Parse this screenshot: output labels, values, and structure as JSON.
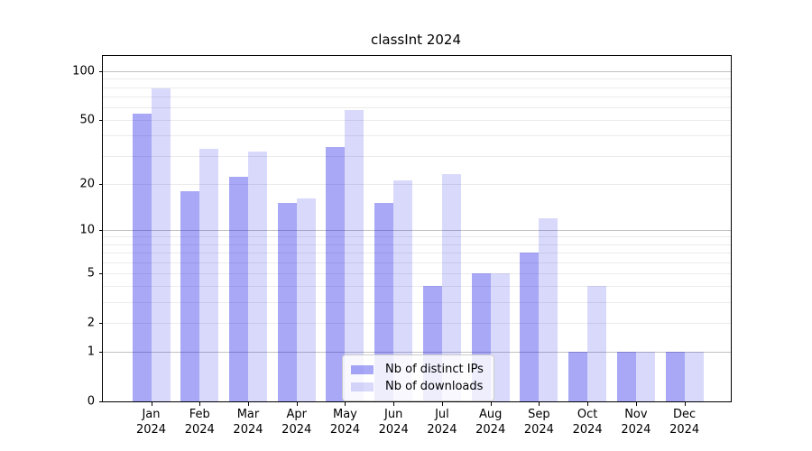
{
  "title": "classInt 2024",
  "legend": {
    "items": [
      {
        "label": "Nb of distinct IPs"
      },
      {
        "label": "Nb of downloads"
      }
    ],
    "position": "lower center"
  },
  "chart_data": {
    "type": "bar",
    "title": "classInt 2024",
    "categories": [
      "Jan",
      "Feb",
      "Mar",
      "Apr",
      "May",
      "Jun",
      "Jul",
      "Aug",
      "Sep",
      "Oct",
      "Nov",
      "Dec"
    ],
    "category_year": "2024",
    "series": [
      {
        "name": "Nb of distinct IPs",
        "color": "rgba(0,0,230,0.34)",
        "values": [
          55,
          18,
          22,
          15,
          34,
          15,
          4,
          5,
          7,
          1,
          1,
          1
        ]
      },
      {
        "name": "Nb of downloads",
        "color": "rgba(0,0,230,0.15)",
        "values": [
          78,
          33,
          32,
          16,
          58,
          21,
          23,
          5,
          12,
          4,
          1,
          1
        ]
      }
    ],
    "xlabel": "",
    "ylabel": "",
    "yscale": "log1p",
    "ylim": [
      0,
      123
    ],
    "yticks": [
      0,
      1,
      2,
      5,
      10,
      20,
      50,
      100
    ],
    "major_gridlines": [
      1,
      10,
      100
    ],
    "minor_gridlines": [
      2,
      3,
      4,
      5,
      6,
      7,
      8,
      9,
      20,
      30,
      40,
      50,
      60,
      70,
      80,
      90
    ],
    "grid": true,
    "legend_position": "lower center",
    "colors": {
      "bar_distinct_ips": "rgba(0,0,230,0.34)",
      "bar_downloads": "rgba(0,0,230,0.15)",
      "gridline_minor": "#ebebeb",
      "gridline_major": "#c2c2c2",
      "axis": "#000000"
    }
  }
}
